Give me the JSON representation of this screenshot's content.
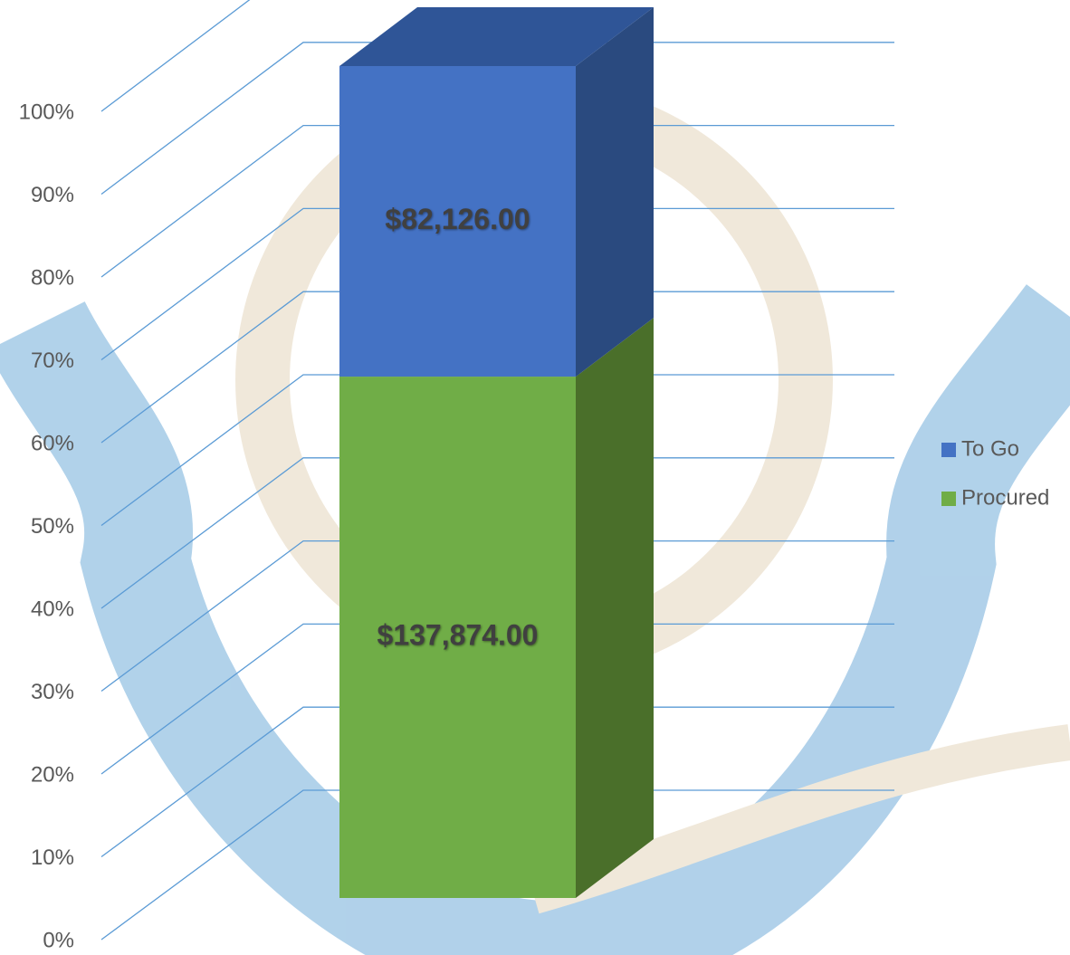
{
  "chart_data": {
    "type": "bar3d",
    "stacking": "percent",
    "categories": [
      null
    ],
    "series": [
      {
        "name": "Procured",
        "color": "#70ad47",
        "side_color": "#4a6f2a",
        "values": [
          137874
        ],
        "value_labels": [
          "$137,874.00"
        ]
      },
      {
        "name": "To Go",
        "color": "#4472c4",
        "side_color": "#2a4a7f",
        "values": [
          82126
        ],
        "value_labels": [
          "$82,126.00"
        ]
      }
    ],
    "ylim": [
      0,
      100
    ],
    "yticks": [
      {
        "value": 0,
        "label": "0%"
      },
      {
        "value": 10,
        "label": "10%"
      },
      {
        "value": 20,
        "label": "20%"
      },
      {
        "value": 30,
        "label": "30%"
      },
      {
        "value": 40,
        "label": "40%"
      },
      {
        "value": 50,
        "label": "50%"
      },
      {
        "value": 60,
        "label": "60%"
      },
      {
        "value": 70,
        "label": "70%"
      },
      {
        "value": 80,
        "label": "80%"
      },
      {
        "value": 90,
        "label": "90%"
      },
      {
        "value": 100,
        "label": "100%"
      }
    ],
    "grid": true,
    "legend": "right"
  }
}
